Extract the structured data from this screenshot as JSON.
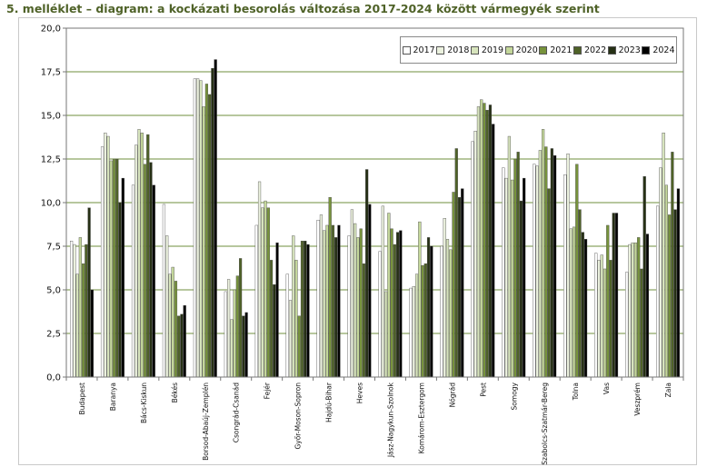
{
  "page": {
    "title": "5. melléklet – diagram: a kockázati besorolás változása 2017-2024 között vármegyék szerint"
  },
  "colors": {
    "title": "#4f6228",
    "gridline": "#6f8f3c",
    "plot_border": "#777777",
    "series": [
      "#ffffff",
      "#ebf1de",
      "#d7e4bd",
      "#c4d79b",
      "#77933c",
      "#4f6228",
      "#263015",
      "#000000"
    ]
  },
  "chart_data": {
    "type": "bar",
    "title": "",
    "xlabel": "",
    "ylabel": "",
    "ylim": [
      0,
      20
    ],
    "yticks": [
      "0,0",
      "2,5",
      "5,0",
      "7,5",
      "10,0",
      "12,5",
      "15,0",
      "17,5",
      "20,0"
    ],
    "grid": true,
    "legend_position": "top-right",
    "categories": [
      "Budapest",
      "Baranya",
      "Bács-Kiskun",
      "Békés",
      "Borsod-Abaúj-Zemplén",
      "Csongrád-Csanád",
      "Fejér",
      "Győr-Moson-Sopron",
      "Hajdú-Bihar",
      "Heves",
      "Jász-Nagykun-Szolnok",
      "Komárom-Esztergom",
      "Nógrád",
      "Pest",
      "Somogy",
      "Szabolcs-Szatmár-Bereg",
      "Tolna",
      "Vas",
      "Veszprém",
      "Zala"
    ],
    "series": [
      {
        "name": "2017",
        "values": [
          7.8,
          13.2,
          11.0,
          9.9,
          17.1,
          4.9,
          8.7,
          5.9,
          9.0,
          8.1,
          7.2,
          5.1,
          7.5,
          13.5,
          12.0,
          12.2,
          11.6,
          7.1,
          6.0,
          9.8
        ]
      },
      {
        "name": "2018",
        "values": [
          7.6,
          14.0,
          13.3,
          8.1,
          17.1,
          5.6,
          11.2,
          4.4,
          9.3,
          9.6,
          9.8,
          5.2,
          9.1,
          14.1,
          11.4,
          12.1,
          12.8,
          6.7,
          7.6,
          12.0
        ]
      },
      {
        "name": "2019",
        "values": [
          5.9,
          13.8,
          14.2,
          5.9,
          17.0,
          3.3,
          9.7,
          8.1,
          8.4,
          8.8,
          4.9,
          5.9,
          7.9,
          15.5,
          13.8,
          13.0,
          8.5,
          7.0,
          7.7,
          14.0
        ]
      },
      {
        "name": "2020",
        "values": [
          8.0,
          12.4,
          14.0,
          6.3,
          15.5,
          5.0,
          10.1,
          6.7,
          8.7,
          8.0,
          9.4,
          8.9,
          7.3,
          15.9,
          11.3,
          14.2,
          8.6,
          6.2,
          7.7,
          11.0
        ]
      },
      {
        "name": "2021",
        "values": [
          6.5,
          12.5,
          12.2,
          5.5,
          16.8,
          5.8,
          9.7,
          3.5,
          10.3,
          8.5,
          8.5,
          6.4,
          10.6,
          15.7,
          12.5,
          13.2,
          12.2,
          8.7,
          8.0,
          9.3
        ]
      },
      {
        "name": "2022",
        "values": [
          7.6,
          12.5,
          13.9,
          3.5,
          16.2,
          6.8,
          6.7,
          7.8,
          8.7,
          6.5,
          7.6,
          6.5,
          13.1,
          15.3,
          12.9,
          10.8,
          9.6,
          6.7,
          6.2,
          12.9
        ]
      },
      {
        "name": "2023",
        "values": [
          9.7,
          10.0,
          12.3,
          3.6,
          17.7,
          3.5,
          5.3,
          7.8,
          8.0,
          11.9,
          8.3,
          8.0,
          10.3,
          15.6,
          10.1,
          13.1,
          8.3,
          9.4,
          11.5,
          9.6
        ]
      },
      {
        "name": "2024",
        "values": [
          5.0,
          11.4,
          11.0,
          4.1,
          18.2,
          3.7,
          7.7,
          7.6,
          8.7,
          9.9,
          8.4,
          7.5,
          10.8,
          14.5,
          11.4,
          12.7,
          7.9,
          9.4,
          8.2,
          10.8
        ]
      }
    ]
  }
}
